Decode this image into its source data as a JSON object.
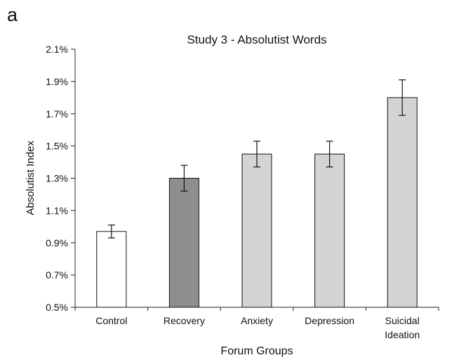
{
  "panel_label": "a",
  "chart_data": {
    "type": "bar",
    "title": "Study 3 - Absolutist Words",
    "xlabel": "Forum Groups",
    "ylabel": "Absolutist Index",
    "categories": [
      "Control",
      "Recovery",
      "Anxiety",
      "Depression",
      "Suicidal Ideation"
    ],
    "values": [
      0.97,
      1.3,
      1.45,
      1.45,
      1.8
    ],
    "error_low": [
      0.93,
      1.22,
      1.37,
      1.37,
      1.69
    ],
    "error_high": [
      1.01,
      1.38,
      1.53,
      1.53,
      1.91
    ],
    "bar_colors": [
      "#ffffff",
      "#8e8e90",
      "#d4d4d6",
      "#d4d4d6",
      "#d4d4d6"
    ],
    "ylim": [
      0.5,
      2.1
    ],
    "yticks": [
      0.5,
      0.7,
      0.9,
      1.1,
      1.3,
      1.5,
      1.7,
      1.9,
      2.1
    ],
    "ytick_labels": [
      "0.5%",
      "0.7%",
      "0.9%",
      "1.1%",
      "1.3%",
      "1.5%",
      "1.7%",
      "1.9%",
      "2.1%"
    ],
    "grid": false,
    "legend": "none"
  }
}
